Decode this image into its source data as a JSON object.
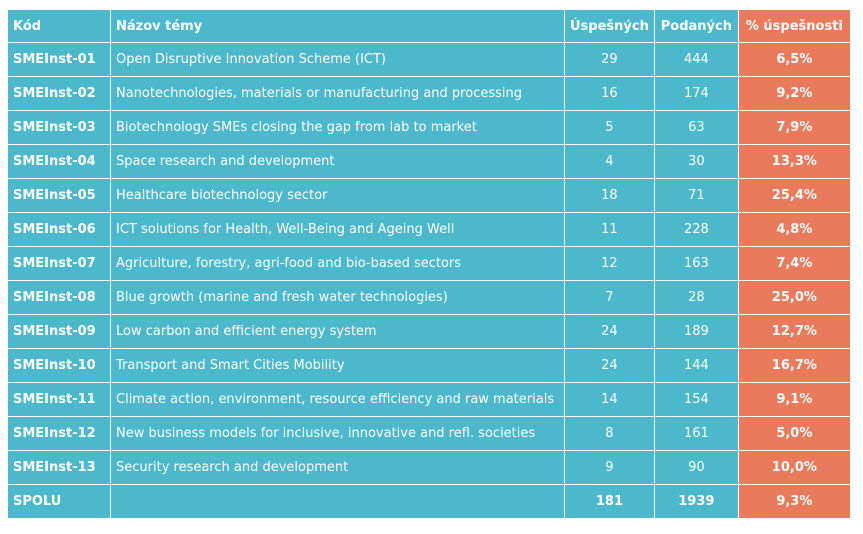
{
  "chart_data": {
    "type": "table",
    "columns": [
      "Kód",
      "Názov témy",
      "Úspešných",
      "Podaných",
      "% úspešnosti"
    ],
    "rows": [
      {
        "code": "SMEInst-01",
        "name": "Open Disruptive Innovation Scheme (ICT)",
        "success": "29",
        "submitted": "444",
        "rate": "6,5%"
      },
      {
        "code": "SMEInst-02",
        "name": "Nanotechnologies, materials or manufacturing and processing",
        "success": "16",
        "submitted": "174",
        "rate": "9,2%"
      },
      {
        "code": "SMEInst-03",
        "name": "Biotechnology SMEs closing the gap from lab to market",
        "success": "5",
        "submitted": "63",
        "rate": "7,9%"
      },
      {
        "code": "SMEInst-04",
        "name": "Space research and development",
        "success": "4",
        "submitted": "30",
        "rate": "13,3%"
      },
      {
        "code": "SMEInst-05",
        "name": "Healthcare biotechnology sector",
        "success": "18",
        "submitted": "71",
        "rate": "25,4%"
      },
      {
        "code": "SMEInst-06",
        "name": "ICT solutions for Health, Well-Being and Ageing Well",
        "success": "11",
        "submitted": "228",
        "rate": "4,8%"
      },
      {
        "code": "SMEInst-07",
        "name": "Agriculture, forestry, agri-food and bio-based sectors",
        "success": "12",
        "submitted": "163",
        "rate": "7,4%"
      },
      {
        "code": "SMEInst-08",
        "name": "Blue growth (marine and fresh water technologies)",
        "success": "7",
        "submitted": "28",
        "rate": "25,0%"
      },
      {
        "code": "SMEInst-09",
        "name": "Low carbon and efficient energy system",
        "success": "24",
        "submitted": "189",
        "rate": "12,7%"
      },
      {
        "code": "SMEInst-10",
        "name": "Transport and Smart Cities Mobility",
        "success": "24",
        "submitted": "144",
        "rate": "16,7%"
      },
      {
        "code": "SMEInst-11",
        "name": "Climate action, environment, resource efficiency and raw materials",
        "success": "14",
        "submitted": "154",
        "rate": "9,1%"
      },
      {
        "code": "SMEInst-12",
        "name": "New business models for inclusive, innovative and refl. societies",
        "success": "8",
        "submitted": "161",
        "rate": "5,0%"
      },
      {
        "code": "SMEInst-13",
        "name": "Security research and development",
        "success": "9",
        "submitted": "90",
        "rate": "10,0%"
      }
    ],
    "total": {
      "code": "SPOLU",
      "name": "",
      "success": "181",
      "submitted": "1939",
      "rate": "9,3%"
    }
  },
  "colors": {
    "cell_background": "#4cb8cc",
    "rate_background": "#ea7a5c",
    "text": "#ffffff",
    "grid": "#ffffff"
  }
}
